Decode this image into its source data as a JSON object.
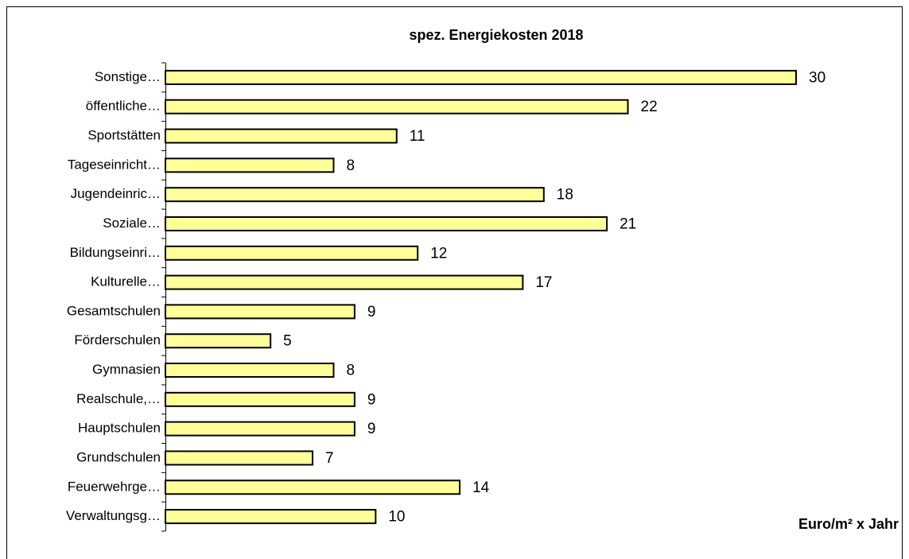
{
  "chart_data": {
    "type": "bar",
    "orientation": "horizontal",
    "title": "spez. Energiekosten 2018",
    "x_axis_label": "Euro/m² x Jahr",
    "categories": [
      "Sonstige…",
      "öffentliche…",
      "Sportstätten",
      "Tageseinricht…",
      "Jugendeinric…",
      "Soziale…",
      "Bildungseinri…",
      "Kulturelle…",
      "Gesamtschulen",
      "Förderschulen",
      "Gymnasien",
      "Realschule,…",
      "Hauptschulen",
      "Grundschulen",
      "Feuerwehrge…",
      "Verwaltungsg…"
    ],
    "values": [
      30,
      22,
      11,
      8,
      18,
      21,
      12,
      17,
      9,
      5,
      8,
      9,
      9,
      7,
      14,
      10
    ],
    "color": "#ffff99",
    "data_labels": true
  }
}
